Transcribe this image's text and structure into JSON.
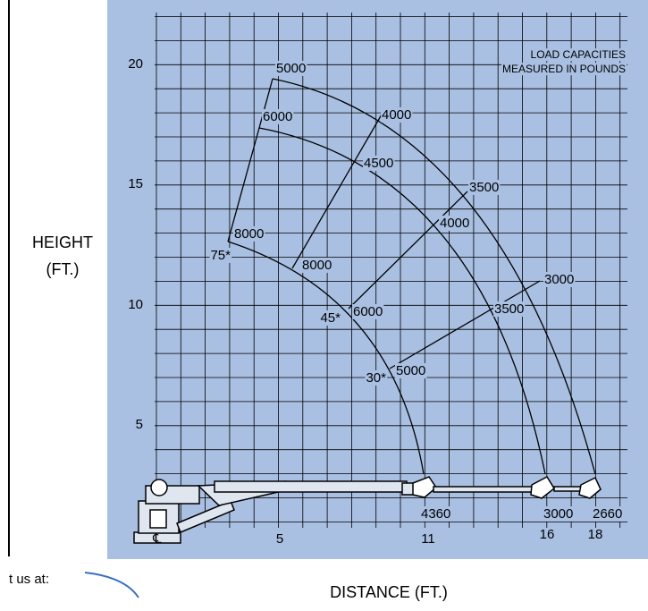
{
  "axes": {
    "y_label": [
      "HEIGHT",
      "(FT.)"
    ],
    "x_label": "DISTANCE (FT.)",
    "y_ticks": [
      "5",
      "10",
      "15",
      "20"
    ],
    "x_ticks": [
      "℄",
      "5",
      "11",
      "16",
      "18"
    ]
  },
  "note": [
    "LOAD CAPACITIES",
    "MEASURED IN POUNDS"
  ],
  "capacity_labels": [
    "5000",
    "6000",
    "4000",
    "4500",
    "3500",
    "8000",
    "8000",
    "4000",
    "3000",
    "3500",
    "6000",
    "5000"
  ],
  "angle_labels": [
    "75*",
    "45*",
    "30*"
  ],
  "tip_capacities": [
    "4360",
    "3000",
    "2660"
  ],
  "footer": {
    "partial_text": "t us at:"
  }
}
